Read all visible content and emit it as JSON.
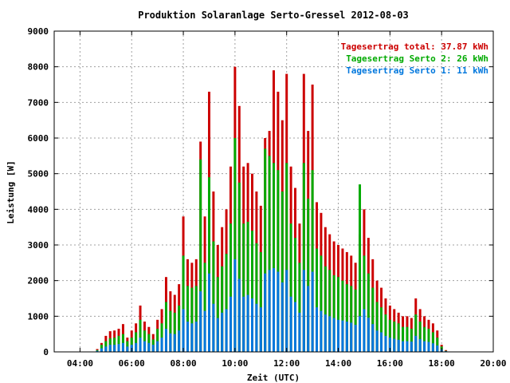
{
  "chart_data": {
    "type": "bar",
    "title": "Produktion Solaranlage Serto-Gressel 2012-08-03",
    "xlabel": "Zeit (UTC)",
    "ylabel": "Leistung [W]",
    "xlim": [
      "03:00",
      "20:00"
    ],
    "ylim": [
      0,
      9000
    ],
    "x_ticks": [
      "04:00",
      "06:00",
      "08:00",
      "10:00",
      "12:00",
      "14:00",
      "16:00",
      "18:00",
      "20:00"
    ],
    "y_ticks": [
      0,
      1000,
      2000,
      3000,
      4000,
      5000,
      6000,
      7000,
      8000,
      9000
    ],
    "grid": true,
    "legend_position": "top-right",
    "legend": [
      {
        "label": "Tagesertrag total: 37.87 kWh",
        "color": "#cc0000"
      },
      {
        "label": "Tagesertrag Serto 2: 26 kWh",
        "color": "#00aa00"
      },
      {
        "label": "Tagesertrag Serto 1: 11 kWh",
        "color": "#0077dd"
      }
    ],
    "x": [
      "04:40",
      "04:50",
      "05:00",
      "05:10",
      "05:20",
      "05:30",
      "05:40",
      "05:50",
      "06:00",
      "06:10",
      "06:20",
      "06:30",
      "06:40",
      "06:50",
      "07:00",
      "07:10",
      "07:20",
      "07:30",
      "07:40",
      "07:50",
      "08:00",
      "08:10",
      "08:20",
      "08:30",
      "08:40",
      "08:50",
      "09:00",
      "09:10",
      "09:20",
      "09:30",
      "09:40",
      "09:50",
      "10:00",
      "10:10",
      "10:20",
      "10:30",
      "10:40",
      "10:50",
      "11:00",
      "11:10",
      "11:20",
      "11:30",
      "11:40",
      "11:50",
      "12:00",
      "12:10",
      "12:20",
      "12:30",
      "12:40",
      "12:50",
      "13:00",
      "13:10",
      "13:20",
      "13:30",
      "13:40",
      "13:50",
      "14:00",
      "14:10",
      "14:20",
      "14:30",
      "14:40",
      "14:50",
      "15:00",
      "15:10",
      "15:20",
      "15:30",
      "15:40",
      "15:50",
      "16:00",
      "16:10",
      "16:20",
      "16:30",
      "16:40",
      "16:50",
      "17:00",
      "17:10",
      "17:20",
      "17:30",
      "17:40",
      "17:50",
      "18:00",
      "18:10"
    ],
    "series": [
      {
        "name": "Tagesertrag total: 37.87 kWh",
        "color": "#cc0000",
        "values": [
          80,
          250,
          450,
          580,
          600,
          650,
          780,
          400,
          600,
          800,
          1300,
          850,
          700,
          500,
          900,
          1200,
          2100,
          1700,
          1600,
          1900,
          3800,
          2600,
          2500,
          2600,
          5900,
          3800,
          7300,
          4500,
          3000,
          3500,
          4000,
          5200,
          8000,
          6900,
          5200,
          5300,
          5000,
          4500,
          4100,
          6000,
          6200,
          7900,
          7300,
          6500,
          7800,
          5200,
          4600,
          3600,
          7800,
          6200,
          7500,
          4200,
          3900,
          3500,
          3300,
          3100,
          3000,
          2900,
          2800,
          2700,
          2500,
          3300,
          4000,
          3200,
          2600,
          2000,
          1800,
          1500,
          1300,
          1200,
          1100,
          1000,
          1000,
          950,
          1500,
          1200,
          1000,
          900,
          800,
          600,
          200,
          50
        ]
      },
      {
        "name": "Tagesertrag Serto 2: 26 kWh",
        "color": "#00aa00",
        "values": [
          50,
          200,
          300,
          380,
          400,
          450,
          500,
          300,
          400,
          550,
          900,
          600,
          500,
          350,
          650,
          800,
          1400,
          1150,
          1100,
          1300,
          2700,
          1850,
          1800,
          1850,
          5400,
          2500,
          4900,
          3100,
          2100,
          2400,
          2750,
          3600,
          6000,
          4750,
          3600,
          3650,
          3400,
          3050,
          2800,
          5700,
          5500,
          5300,
          5100,
          4500,
          5300,
          3600,
          3200,
          2500,
          5300,
          4300,
          5100,
          2900,
          2700,
          2400,
          2300,
          2150,
          2100,
          2000,
          1900,
          1850,
          1750,
          4700,
          2700,
          2200,
          1800,
          1400,
          1250,
          1050,
          900,
          850,
          800,
          700,
          700,
          650,
          1050,
          850,
          700,
          650,
          550,
          400,
          150,
          30
        ]
      },
      {
        "name": "Tagesertrag Serto 1: 11 kWh",
        "color": "#0077dd",
        "values": [
          30,
          100,
          150,
          200,
          200,
          220,
          250,
          150,
          200,
          250,
          400,
          300,
          250,
          200,
          300,
          400,
          650,
          520,
          500,
          600,
          1200,
          850,
          800,
          850,
          1700,
          1150,
          2200,
          1350,
          950,
          1100,
          1200,
          1550,
          2600,
          2050,
          1550,
          1600,
          1500,
          1350,
          1250,
          2200,
          2300,
          2350,
          2250,
          1950,
          2300,
          1550,
          1400,
          1100,
          2300,
          1850,
          2250,
          1250,
          1150,
          1050,
          1000,
          950,
          900,
          880,
          850,
          820,
          760,
          1000,
          1200,
          960,
          780,
          600,
          550,
          450,
          400,
          370,
          340,
          300,
          300,
          290,
          450,
          360,
          300,
          280,
          240,
          180,
          70,
          20
        ]
      }
    ]
  }
}
